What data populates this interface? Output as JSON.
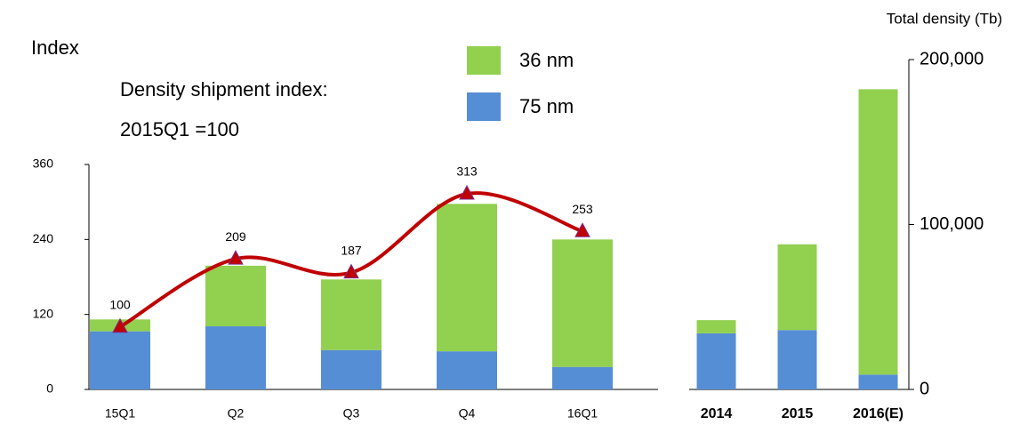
{
  "chart_data": [
    {
      "type": "bar",
      "stacked": true,
      "ylabel": "Index",
      "annotations": [
        "Density shipment index:",
        "2015Q1 =100"
      ],
      "categories": [
        "15Q1",
        "Q2",
        "Q3",
        "Q4",
        "16Q1"
      ],
      "series": [
        {
          "name": "75 nm",
          "color": "#558ed5",
          "values": [
            93,
            101,
            63,
            61,
            36
          ]
        },
        {
          "name": "36 nm",
          "color": "#92d050",
          "values": [
            19,
            97,
            113,
            236,
            204
          ]
        },
        {
          "type": "line",
          "color": "#c00000",
          "values": [
            100,
            209,
            187,
            313,
            253
          ]
        }
      ],
      "ylim": [
        0,
        360
      ],
      "yticks": [
        0,
        120,
        240,
        360
      ]
    },
    {
      "type": "bar",
      "stacked": true,
      "axis_position": "right",
      "ylabel": "Total density (Tb)",
      "categories": [
        "2014",
        "2015",
        "2016(E)"
      ],
      "series": [
        {
          "color": "#558ed5",
          "values": [
            34000,
            36000,
            9000
          ]
        },
        {
          "color": "#92d050",
          "values": [
            8000,
            52000,
            173000
          ]
        }
      ],
      "ylim": [
        0,
        200000
      ],
      "yticks": [
        0,
        {
          "value": 100000,
          "label": "100,000"
        },
        {
          "value": 200000,
          "label": "200,000"
        }
      ]
    }
  ]
}
